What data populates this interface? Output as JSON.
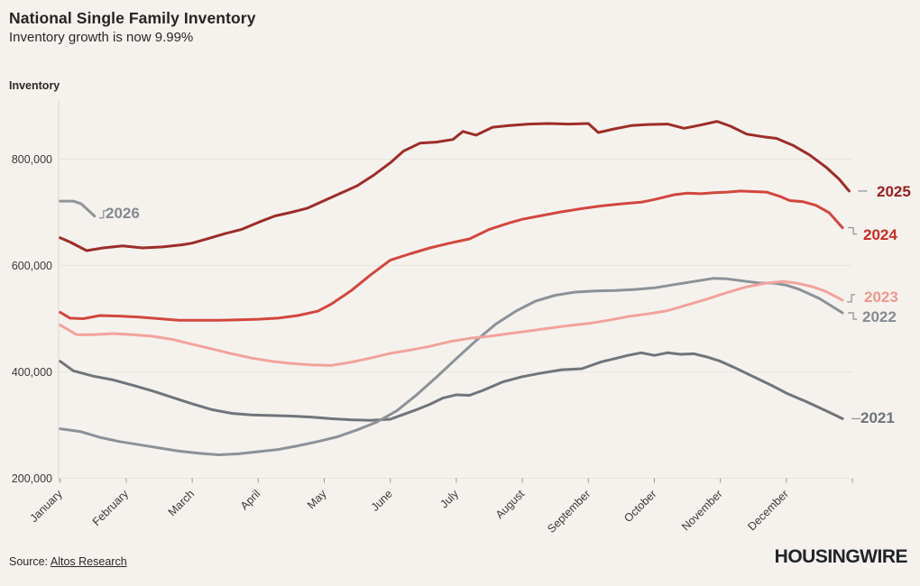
{
  "header": {
    "title": "National Single Family Inventory",
    "subtitle": "Inventory growth is now 9.99%"
  },
  "footer": {
    "source_label": "Source:",
    "source_link": "Altos Research",
    "brand": "HOUSINGWIRE"
  },
  "chart_data": {
    "type": "line",
    "title": "National Single Family Inventory",
    "subtitle": "Inventory growth is now 9.99%",
    "ylabel": "Inventory",
    "xlabel": "",
    "ylim": [
      200000,
      900000
    ],
    "x_range_months": [
      0,
      12
    ],
    "grid": "horizontal",
    "legend_position": "line-end-labels",
    "y_ticks": [
      {
        "value": 800000,
        "label": "800,000"
      },
      {
        "value": 600000,
        "label": "600,000"
      },
      {
        "value": 400000,
        "label": "400,000"
      },
      {
        "value": 200000,
        "label": "200,000"
      }
    ],
    "x_ticks": [
      "January",
      "February",
      "March",
      "April",
      "May",
      "June",
      "July",
      "August",
      "September",
      "October",
      "November",
      "December"
    ],
    "x_unit": "month offset from Jan 1 (fractional = weeks within month)",
    "series": [
      {
        "name": "2021",
        "color": "#6f757a",
        "label_color": "#6d7377",
        "label_connector": "dash",
        "points": [
          [
            0,
            420000
          ],
          [
            0.2,
            402000
          ],
          [
            0.5,
            392000
          ],
          [
            0.8,
            385000
          ],
          [
            1.1,
            375000
          ],
          [
            1.4,
            364000
          ],
          [
            1.7,
            352000
          ],
          [
            2.0,
            340000
          ],
          [
            2.3,
            329000
          ],
          [
            2.6,
            322000
          ],
          [
            2.9,
            319000
          ],
          [
            3.2,
            318000
          ],
          [
            3.5,
            317000
          ],
          [
            3.8,
            315000
          ],
          [
            4.1,
            312000
          ],
          [
            4.4,
            310000
          ],
          [
            4.7,
            309000
          ],
          [
            5.0,
            311000
          ],
          [
            5.2,
            320000
          ],
          [
            5.4,
            329000
          ],
          [
            5.6,
            339000
          ],
          [
            5.8,
            351000
          ],
          [
            6.0,
            357000
          ],
          [
            6.2,
            356000
          ],
          [
            6.4,
            365000
          ],
          [
            6.7,
            381000
          ],
          [
            7.0,
            391000
          ],
          [
            7.3,
            398000
          ],
          [
            7.6,
            404000
          ],
          [
            7.9,
            406000
          ],
          [
            8.2,
            419000
          ],
          [
            8.4,
            425000
          ],
          [
            8.6,
            431000
          ],
          [
            8.8,
            436000
          ],
          [
            9.0,
            431000
          ],
          [
            9.2,
            436000
          ],
          [
            9.4,
            433000
          ],
          [
            9.6,
            434000
          ],
          [
            9.8,
            428000
          ],
          [
            10.0,
            420000
          ],
          [
            10.2,
            409000
          ],
          [
            10.5,
            391000
          ],
          [
            10.8,
            373000
          ],
          [
            11.0,
            360000
          ],
          [
            11.3,
            344000
          ],
          [
            11.6,
            327000
          ],
          [
            11.85,
            312000
          ]
        ]
      },
      {
        "name": "2022",
        "color": "#8b9298",
        "label_color": "#848b91",
        "label_connector": "step-down",
        "points": [
          [
            0,
            293000
          ],
          [
            0.3,
            288000
          ],
          [
            0.6,
            277000
          ],
          [
            0.9,
            269000
          ],
          [
            1.2,
            263000
          ],
          [
            1.5,
            257000
          ],
          [
            1.8,
            251000
          ],
          [
            2.1,
            247000
          ],
          [
            2.4,
            244000
          ],
          [
            2.7,
            246000
          ],
          [
            3.0,
            250000
          ],
          [
            3.3,
            254000
          ],
          [
            3.6,
            261000
          ],
          [
            3.9,
            269000
          ],
          [
            4.2,
            278000
          ],
          [
            4.5,
            291000
          ],
          [
            4.8,
            306000
          ],
          [
            5.1,
            327000
          ],
          [
            5.4,
            357000
          ],
          [
            5.7,
            390000
          ],
          [
            6.0,
            425000
          ],
          [
            6.3,
            459000
          ],
          [
            6.6,
            490000
          ],
          [
            6.9,
            514000
          ],
          [
            7.2,
            533000
          ],
          [
            7.5,
            544000
          ],
          [
            7.8,
            550000
          ],
          [
            8.1,
            552000
          ],
          [
            8.4,
            553000
          ],
          [
            8.7,
            555000
          ],
          [
            9.0,
            558000
          ],
          [
            9.3,
            564000
          ],
          [
            9.6,
            570000
          ],
          [
            9.9,
            576000
          ],
          [
            10.1,
            575000
          ],
          [
            10.4,
            570000
          ],
          [
            10.6,
            567000
          ],
          [
            10.8,
            567000
          ],
          [
            11.0,
            563000
          ],
          [
            11.2,
            555000
          ],
          [
            11.5,
            538000
          ],
          [
            11.85,
            511000
          ]
        ]
      },
      {
        "name": "2023",
        "color": "#f2a39c",
        "label_color": "#f0978f",
        "label_connector": "step-up",
        "points": [
          [
            0,
            488000
          ],
          [
            0.25,
            470000
          ],
          [
            0.5,
            470000
          ],
          [
            0.8,
            472000
          ],
          [
            1.1,
            470000
          ],
          [
            1.4,
            467000
          ],
          [
            1.7,
            461000
          ],
          [
            2.0,
            452000
          ],
          [
            2.3,
            443000
          ],
          [
            2.6,
            434000
          ],
          [
            2.9,
            426000
          ],
          [
            3.2,
            420000
          ],
          [
            3.5,
            416000
          ],
          [
            3.8,
            413000
          ],
          [
            4.1,
            412000
          ],
          [
            4.4,
            418000
          ],
          [
            4.7,
            426000
          ],
          [
            5.0,
            435000
          ],
          [
            5.3,
            441000
          ],
          [
            5.6,
            448000
          ],
          [
            5.9,
            457000
          ],
          [
            6.2,
            463000
          ],
          [
            6.5,
            467000
          ],
          [
            6.8,
            472000
          ],
          [
            7.1,
            477000
          ],
          [
            7.4,
            482000
          ],
          [
            7.7,
            487000
          ],
          [
            8.0,
            491000
          ],
          [
            8.3,
            497000
          ],
          [
            8.6,
            504000
          ],
          [
            8.9,
            509000
          ],
          [
            9.2,
            515000
          ],
          [
            9.5,
            526000
          ],
          [
            9.8,
            537000
          ],
          [
            10.1,
            549000
          ],
          [
            10.4,
            560000
          ],
          [
            10.7,
            567000
          ],
          [
            10.95,
            570000
          ],
          [
            11.15,
            567000
          ],
          [
            11.4,
            560000
          ],
          [
            11.6,
            551000
          ],
          [
            11.85,
            535000
          ]
        ]
      },
      {
        "name": "2024",
        "color": "#d2473e",
        "label_color": "#ce2b21",
        "label_connector": "step-down",
        "points": [
          [
            0,
            512000
          ],
          [
            0.15,
            501000
          ],
          [
            0.35,
            500000
          ],
          [
            0.6,
            506000
          ],
          [
            0.9,
            505000
          ],
          [
            1.2,
            503000
          ],
          [
            1.5,
            500000
          ],
          [
            1.8,
            497000
          ],
          [
            2.1,
            497000
          ],
          [
            2.4,
            497000
          ],
          [
            2.7,
            498000
          ],
          [
            3.0,
            499000
          ],
          [
            3.3,
            501000
          ],
          [
            3.6,
            506000
          ],
          [
            3.9,
            514000
          ],
          [
            4.1,
            527000
          ],
          [
            4.4,
            552000
          ],
          [
            4.7,
            582000
          ],
          [
            5.0,
            610000
          ],
          [
            5.3,
            622000
          ],
          [
            5.6,
            633000
          ],
          [
            5.9,
            642000
          ],
          [
            6.2,
            650000
          ],
          [
            6.5,
            668000
          ],
          [
            6.8,
            680000
          ],
          [
            7.0,
            687000
          ],
          [
            7.3,
            694000
          ],
          [
            7.6,
            701000
          ],
          [
            7.9,
            707000
          ],
          [
            8.2,
            712000
          ],
          [
            8.5,
            716000
          ],
          [
            8.8,
            719000
          ],
          [
            9.0,
            724000
          ],
          [
            9.3,
            733000
          ],
          [
            9.5,
            736000
          ],
          [
            9.7,
            735000
          ],
          [
            9.9,
            737000
          ],
          [
            10.1,
            738000
          ],
          [
            10.3,
            740000
          ],
          [
            10.5,
            739000
          ],
          [
            10.7,
            738000
          ],
          [
            10.9,
            730000
          ],
          [
            11.05,
            722000
          ],
          [
            11.25,
            720000
          ],
          [
            11.45,
            713000
          ],
          [
            11.65,
            699000
          ],
          [
            11.85,
            671000
          ]
        ]
      },
      {
        "name": "2025",
        "color": "#9d2d28",
        "label_color": "#9b1d1d",
        "label_connector": "dash",
        "points": [
          [
            0,
            652000
          ],
          [
            0.15,
            644000
          ],
          [
            0.4,
            628000
          ],
          [
            0.65,
            633000
          ],
          [
            0.95,
            637000
          ],
          [
            1.25,
            633000
          ],
          [
            1.55,
            635000
          ],
          [
            1.85,
            639000
          ],
          [
            2.0,
            642000
          ],
          [
            2.25,
            651000
          ],
          [
            2.5,
            660000
          ],
          [
            2.75,
            668000
          ],
          [
            3.0,
            681000
          ],
          [
            3.25,
            693000
          ],
          [
            3.5,
            700000
          ],
          [
            3.75,
            708000
          ],
          [
            4.0,
            722000
          ],
          [
            4.25,
            736000
          ],
          [
            4.5,
            750000
          ],
          [
            4.75,
            770000
          ],
          [
            5.0,
            793000
          ],
          [
            5.2,
            815000
          ],
          [
            5.45,
            830000
          ],
          [
            5.7,
            832000
          ],
          [
            5.95,
            837000
          ],
          [
            6.1,
            852000
          ],
          [
            6.3,
            845000
          ],
          [
            6.55,
            860000
          ],
          [
            6.8,
            863000
          ],
          [
            7.1,
            866000
          ],
          [
            7.4,
            867000
          ],
          [
            7.7,
            866000
          ],
          [
            8.0,
            867000
          ],
          [
            8.15,
            850000
          ],
          [
            8.4,
            857000
          ],
          [
            8.65,
            863000
          ],
          [
            8.9,
            865000
          ],
          [
            9.2,
            866000
          ],
          [
            9.45,
            858000
          ],
          [
            9.7,
            864000
          ],
          [
            9.95,
            871000
          ],
          [
            10.15,
            862000
          ],
          [
            10.4,
            847000
          ],
          [
            10.65,
            842000
          ],
          [
            10.85,
            839000
          ],
          [
            11.1,
            826000
          ],
          [
            11.35,
            808000
          ],
          [
            11.6,
            785000
          ],
          [
            11.8,
            762000
          ],
          [
            11.95,
            740000
          ]
        ]
      },
      {
        "name": "2026",
        "color": "#8f959a",
        "label_color": "#84898d",
        "label_connector": "step-up",
        "points": [
          [
            0,
            721000
          ],
          [
            0.2,
            721000
          ],
          [
            0.32,
            716000
          ],
          [
            0.45,
            701000
          ],
          [
            0.52,
            693000
          ]
        ]
      }
    ]
  }
}
